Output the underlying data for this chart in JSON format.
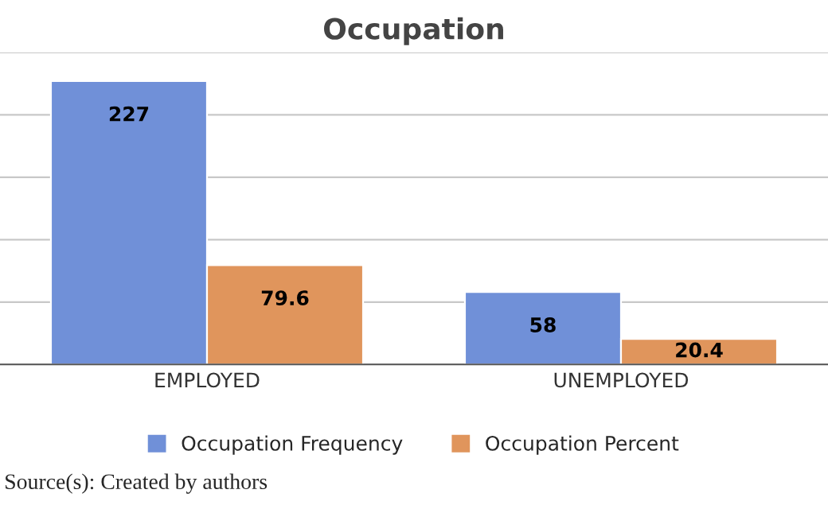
{
  "chart_data": {
    "type": "bar",
    "title": "Occupation",
    "categories": [
      "EMPLOYED",
      "UNEMPLOYED"
    ],
    "series": [
      {
        "name": "Occupation Frequency",
        "color": "#7090d8",
        "values": [
          227,
          58
        ]
      },
      {
        "name": "Occupation Percent",
        "color": "#e0955c",
        "values": [
          79.6,
          20.4
        ]
      }
    ],
    "ylim": [
      0,
      250
    ],
    "yticks": [
      {
        "value": 0,
        "label": null
      },
      {
        "value": 50,
        "label": null
      },
      {
        "value": 100,
        "label": null
      },
      {
        "value": 150,
        "label": null
      },
      {
        "value": 200,
        "label": null
      },
      {
        "value": 250,
        "label": null
      }
    ],
    "tick_labels": "x",
    "grid": "y",
    "legend": "bottom",
    "data_labels": true,
    "annotations": [
      "Source(s): Created by authors"
    ]
  }
}
